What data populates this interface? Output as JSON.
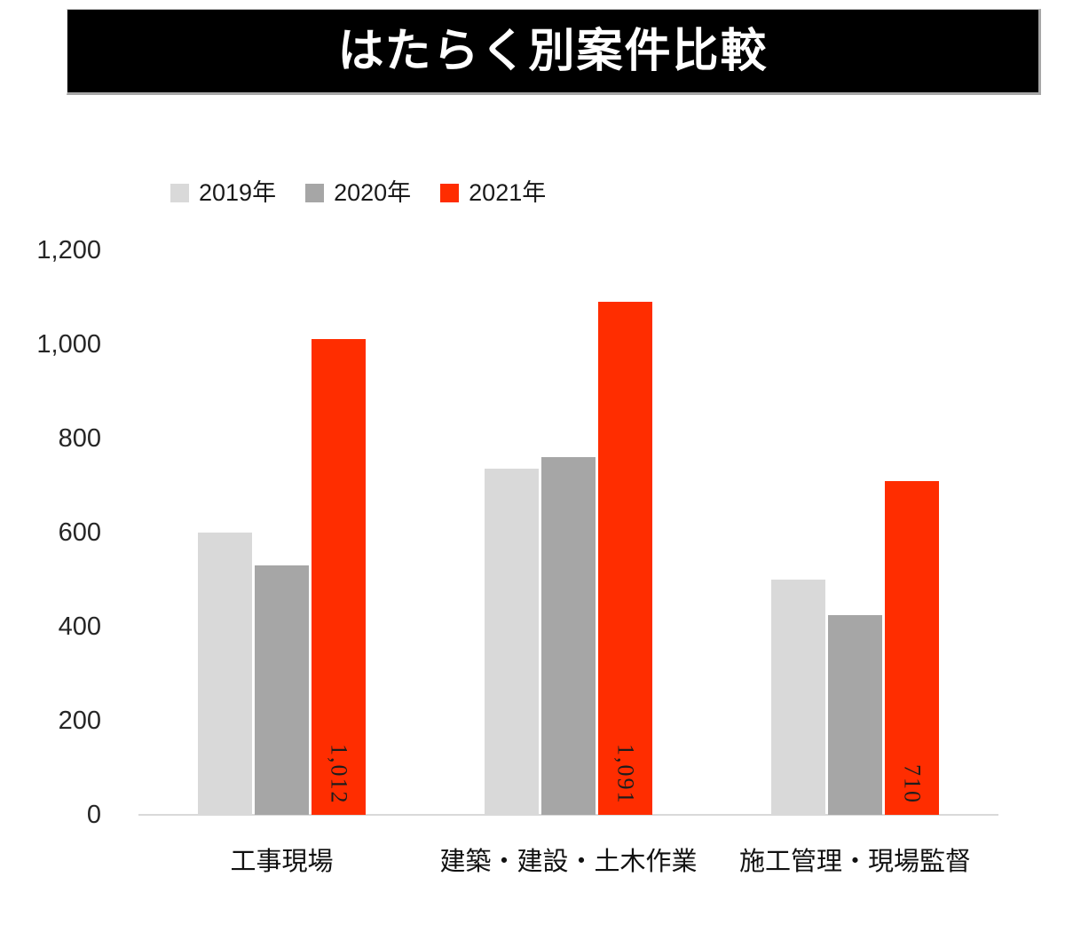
{
  "title": "はたらく別案件比較",
  "chart_data": {
    "type": "bar",
    "title": "はたらく別案件比較",
    "categories": [
      "工事現場",
      "建築・建設・土木作業",
      "施工管理・現場監督"
    ],
    "series": [
      {
        "name": "2019年",
        "color": "#d9d9d9",
        "values": [
          600,
          735,
          500
        ]
      },
      {
        "name": "2020年",
        "color": "#a6a6a6",
        "values": [
          530,
          760,
          425
        ]
      },
      {
        "name": "2021年",
        "color": "#ff2d00",
        "values": [
          1012,
          1091,
          710
        ],
        "data_labels": [
          "1,012",
          "1,091",
          "710"
        ]
      }
    ],
    "ylim": [
      0,
      1200
    ],
    "y_ticks": [
      {
        "value": 1200,
        "label": "1,200"
      },
      {
        "value": 1000,
        "label": "1,000"
      },
      {
        "value": 800,
        "label": "800"
      },
      {
        "value": 600,
        "label": "600"
      },
      {
        "value": 400,
        "label": "400"
      },
      {
        "value": 200,
        "label": "200"
      },
      {
        "value": 0,
        "label": "0"
      }
    ],
    "grid": false,
    "legend_position": "top-left",
    "colors": {
      "banner_background": "#000000",
      "banner_text": "#ffffff",
      "axis_line": "#d9d9d9",
      "bar_label_text": "#1d1d1d"
    }
  }
}
